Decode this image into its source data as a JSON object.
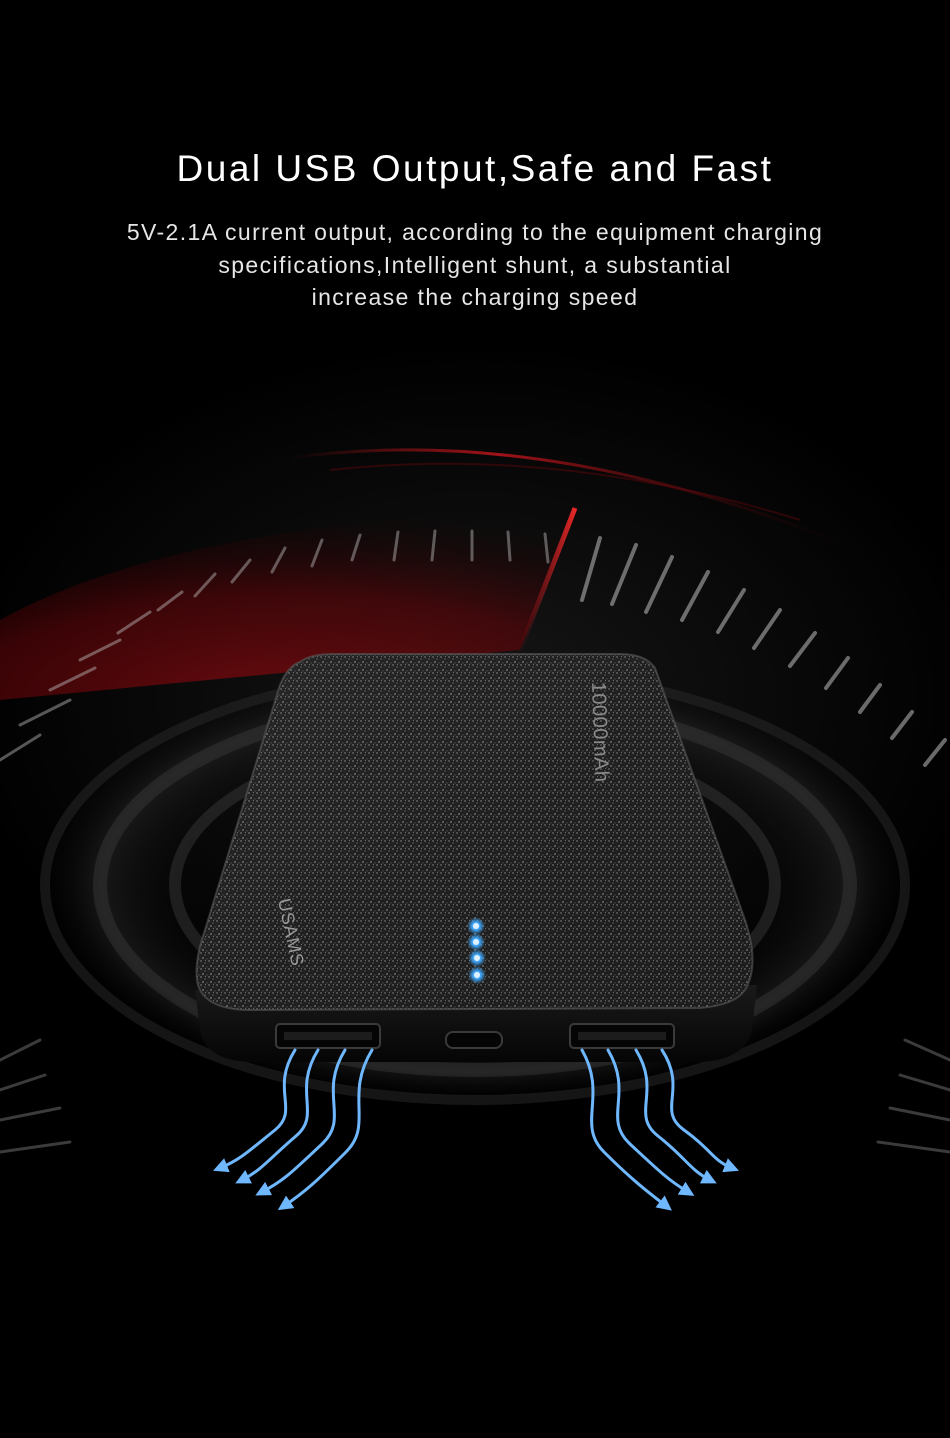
{
  "headline": "Dual USB Output,Safe and Fast",
  "description": {
    "line1": "5V-2.1A current output, according to the equipment charging",
    "line2": "specifications,Intelligent shunt, a substantial",
    "line3": "increase the charging speed"
  },
  "product": {
    "brand": "USAMS",
    "capacity_label": "10000mAh",
    "indicator_leds": 4,
    "usb_output_ports": 2
  },
  "colors": {
    "background": "#000000",
    "accent_red": "#c8161d",
    "led_blue": "#3fa9ff",
    "airflow_blue": "#6fb8ff",
    "text": "#ffffff"
  },
  "icons": [
    "speedometer-dial",
    "power-bank",
    "airflow-arrows"
  ]
}
